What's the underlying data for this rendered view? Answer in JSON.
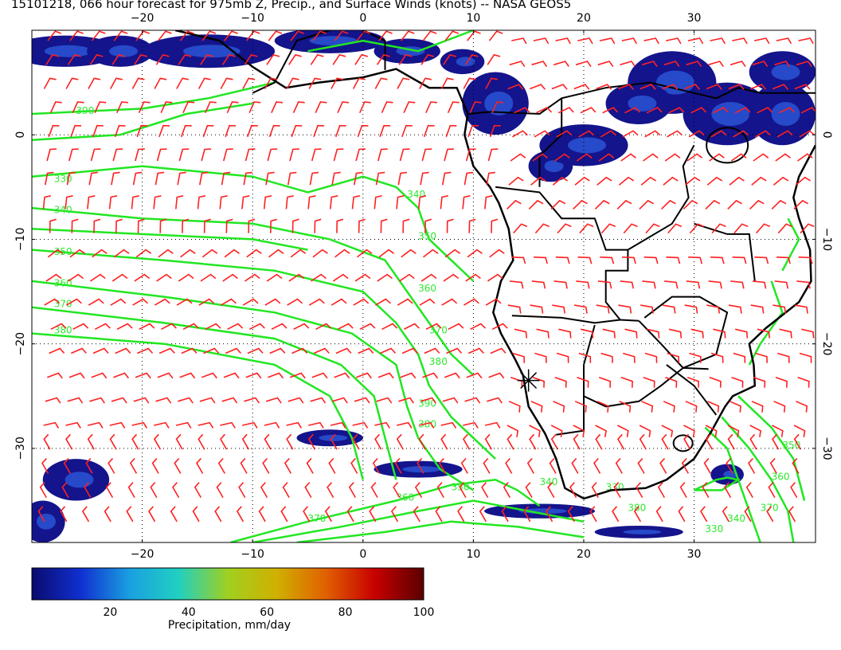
{
  "title": "15101218, 066 hour forecast for 975mb Z, Precip., and Surface Winds (knots) -- NASA GEOS5",
  "map": {
    "lon_range": [
      -30,
      41
    ],
    "lat_range": [
      -39,
      10
    ],
    "lon_ticks": [
      -20,
      -10,
      0,
      10,
      20,
      30
    ],
    "lat_ticks": [
      0,
      -10,
      -20,
      -30
    ],
    "lon_tick_labels": [
      "−20",
      "−10",
      "0",
      "10",
      "20",
      "30"
    ],
    "lat_tick_labels": [
      "0",
      "−10",
      "−20",
      "−30"
    ],
    "marker": {
      "lon": 15,
      "lat": -23.5,
      "symbol": "asterisk"
    },
    "contour_color": "#22e622",
    "barb_color": "#ff2020",
    "coast_color": "#000000",
    "contour_labels": [
      "330",
      "340",
      "350",
      "360",
      "370",
      "380",
      "390",
      "340",
      "350",
      "360",
      "370",
      "380",
      "390",
      "380",
      "370",
      "360",
      "350",
      "340",
      "330",
      "380",
      "370",
      "360",
      "350",
      "340",
      "330"
    ]
  },
  "colorbar": {
    "label": "Precipitation, mm/day",
    "ticks": [
      "20",
      "40",
      "60",
      "80",
      "100"
    ],
    "stops": [
      "#0a0a6e",
      "#1030d0",
      "#1aa0e0",
      "#20d0c0",
      "#a0d020",
      "#d0b000",
      "#e06000",
      "#c80000",
      "#5a0000"
    ]
  }
}
